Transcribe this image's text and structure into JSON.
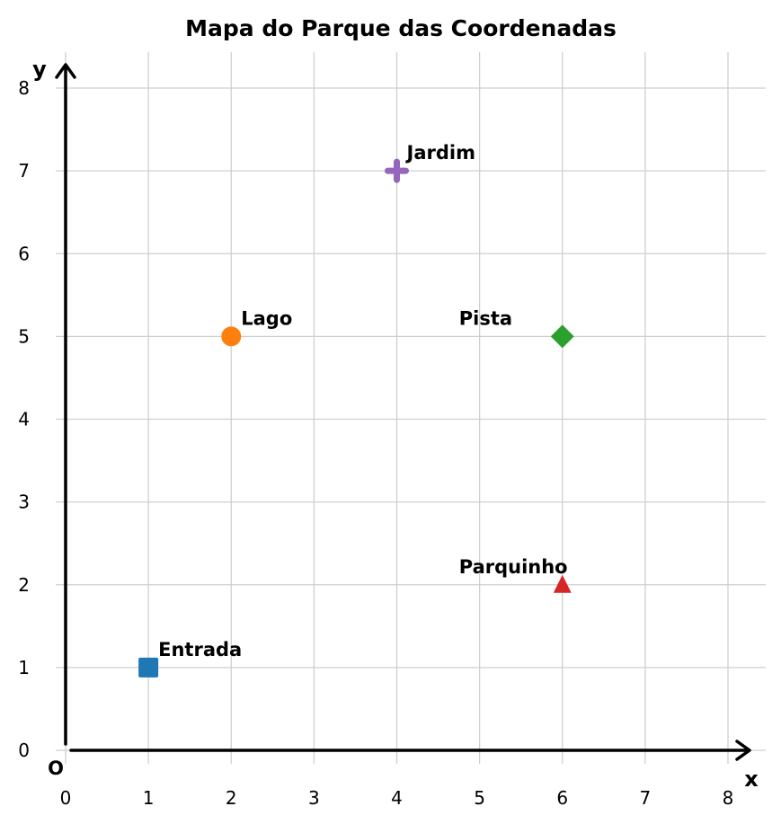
{
  "chart_data": {
    "type": "scatter",
    "title": "Mapa do Parque das Coordenadas",
    "xlabel": "x",
    "ylabel": "y",
    "origin_label": "O",
    "xlim": [
      0,
      8
    ],
    "ylim": [
      0,
      8
    ],
    "xticks": [
      "0",
      "1",
      "2",
      "3",
      "4",
      "5",
      "6",
      "7",
      "8"
    ],
    "yticks": [
      "0",
      "1",
      "2",
      "3",
      "4",
      "5",
      "6",
      "7",
      "8"
    ],
    "grid": true,
    "points": [
      {
        "label": "Entrada",
        "x": 1,
        "y": 1,
        "marker": "square",
        "color": "#1f77b4",
        "label_side": "right"
      },
      {
        "label": "Lago",
        "x": 2,
        "y": 5,
        "marker": "circle",
        "color": "#ff7f0e",
        "label_side": "right"
      },
      {
        "label": "Pista",
        "x": 6,
        "y": 5,
        "marker": "diamond",
        "color": "#2ca02c",
        "label_side": "left"
      },
      {
        "label": "Parquinho",
        "x": 6,
        "y": 2,
        "marker": "triangle",
        "color": "#d62728",
        "label_side": "left"
      },
      {
        "label": "Jardim",
        "x": 4,
        "y": 7,
        "marker": "plus",
        "color": "#9467bd",
        "label_side": "right"
      }
    ]
  }
}
